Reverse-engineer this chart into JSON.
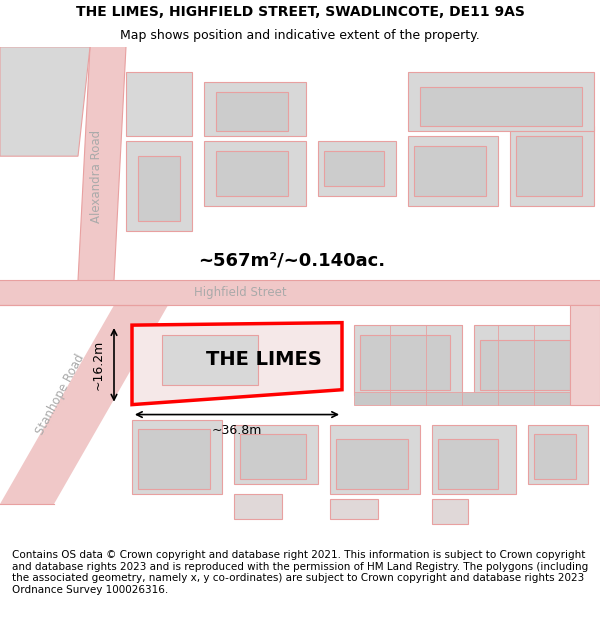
{
  "title_line1": "THE LIMES, HIGHFIELD STREET, SWADLINCOTE, DE11 9AS",
  "title_line2": "Map shows position and indicative extent of the property.",
  "footer_text": "Contains OS data © Crown copyright and database right 2021. This information is subject to Crown copyright and database rights 2023 and is reproduced with the permission of HM Land Registry. The polygons (including the associated geometry, namely x, y co-ordinates) are subject to Crown copyright and database rights 2023 Ordnance Survey 100026316.",
  "property_label": "THE LIMES",
  "area_label": "~567m²/~0.140ac.",
  "width_label": "~36.8m",
  "height_label": "~16.2m",
  "road_label_alexandra": "Alexandra Road",
  "road_label_highfield": "Highfield Street",
  "road_label_stanhope": "Stanhope Road",
  "bg_color": "#ffffff",
  "building_fill": "#d8d8d8",
  "building_stroke": "#e8a0a0",
  "highlight_fill": "#f5e8e8",
  "highlight_stroke": "#ff0000",
  "road_color": "#f0c8c8",
  "road_line_color": "#e8a0a0",
  "title_fontsize": 10,
  "subtitle_fontsize": 9,
  "footer_fontsize": 7.5,
  "label_fontsize": 14,
  "area_fontsize": 13,
  "road_fontsize": 8.5,
  "dim_fontsize": 9
}
